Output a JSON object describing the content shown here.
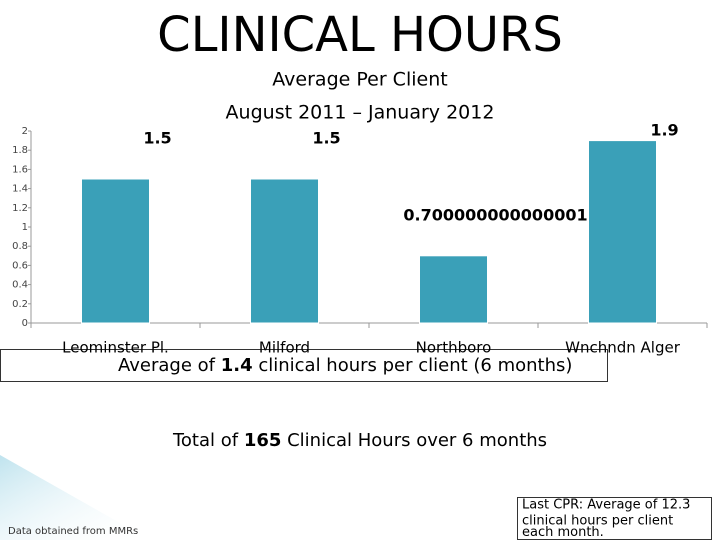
{
  "chart_data": {
    "type": "bar",
    "title": "CLINICAL HOURS",
    "subtitle": "Average Per Client",
    "period": "August 2011 – January 2012",
    "categories": [
      "Leominster Pl.",
      "Milford",
      "Northboro",
      "Wnchndn Alger"
    ],
    "values": [
      1.5,
      1.5,
      0.700000000000001,
      1.9
    ],
    "color": "#3aa0b8",
    "ylim": [
      0,
      2
    ],
    "yticks": [
      0,
      0.2,
      0.4,
      0.6,
      0.8,
      1,
      1.2,
      1.4,
      1.6,
      1.8,
      2
    ],
    "grid": false
  },
  "notes": {
    "average": {
      "before": "Average of ",
      "bold": "1.4",
      "after": " clinical hours per client (6 months)"
    },
    "total": {
      "before": "Total of ",
      "bold": "165",
      "after": " Clinical Hours over 6 months"
    },
    "last_cpr": [
      "Last CPR: Average of 12.3",
      "clinical hours per client",
      "each month."
    ],
    "source": "Data obtained from MMRs"
  }
}
